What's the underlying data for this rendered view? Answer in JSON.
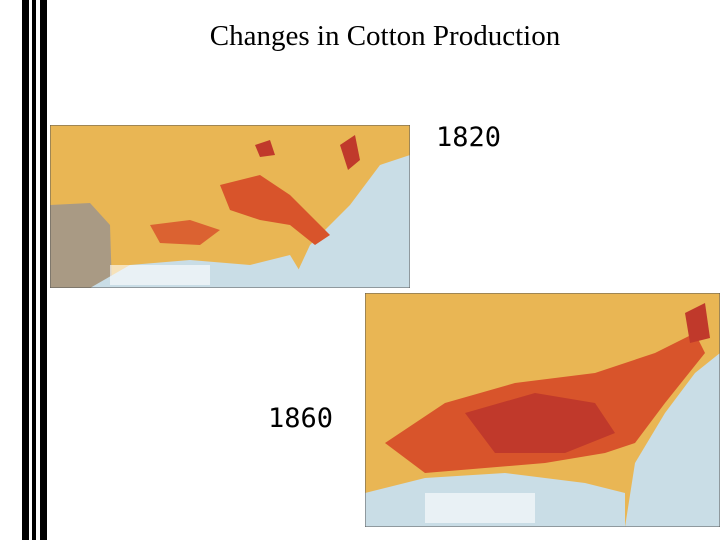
{
  "slide": {
    "title": "Changes in Cotton Production",
    "label_top": "1820",
    "label_bottom": "1860"
  }
}
